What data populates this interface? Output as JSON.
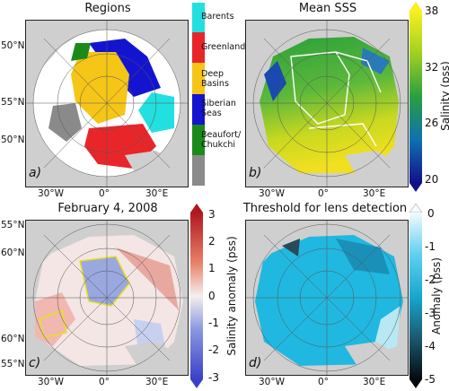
{
  "panels": {
    "a": {
      "title": "Regions",
      "letter": "a)",
      "lat_labels": [
        "50°N",
        "55°N",
        "50°N"
      ],
      "lon_labels": [
        "30°W",
        "0°",
        "30°E"
      ]
    },
    "b": {
      "title": "Mean SSS",
      "letter": "b)",
      "lon_labels": [
        "30°W",
        "0°",
        "30°E"
      ]
    },
    "c": {
      "title": "February 4, 2008",
      "letter": "c)",
      "lat_labels": [
        "55°N",
        "60°N",
        "60°N",
        "55°N"
      ],
      "lon_labels": [
        "30°W",
        "0°",
        "30°E"
      ]
    },
    "d": {
      "title": "Threshold for lens detection",
      "letter": "d)",
      "lon_labels": [
        "30°W",
        "0°",
        "30°E"
      ]
    }
  },
  "region_legend": [
    {
      "label": "Barents",
      "color": "#22e0e0"
    },
    {
      "label": "Greenland",
      "color": "#e8262a"
    },
    {
      "label": "Deep\nBasins",
      "color": "#f5c518"
    },
    {
      "label": "Siberian\nSeas",
      "color": "#1414d0"
    },
    {
      "label": "Beaufort/\nChukchi",
      "color": "#1a8a1a"
    },
    {
      "label": "",
      "color": "#8a8a8a"
    }
  ],
  "colorbars": {
    "sss": {
      "label": "Salinity (pss)",
      "ticks": [
        "38",
        "32",
        "26",
        "20"
      ]
    },
    "anomaly": {
      "label": "Salinity anomaly (pss)",
      "ticks": [
        "3",
        "2",
        "1",
        "0",
        "-1",
        "-2",
        "-3"
      ]
    },
    "threshold": {
      "label": "Anomaly (pss)",
      "ticks": [
        "0",
        "-1",
        "-2",
        "-3",
        "-4",
        "-5"
      ]
    }
  }
}
